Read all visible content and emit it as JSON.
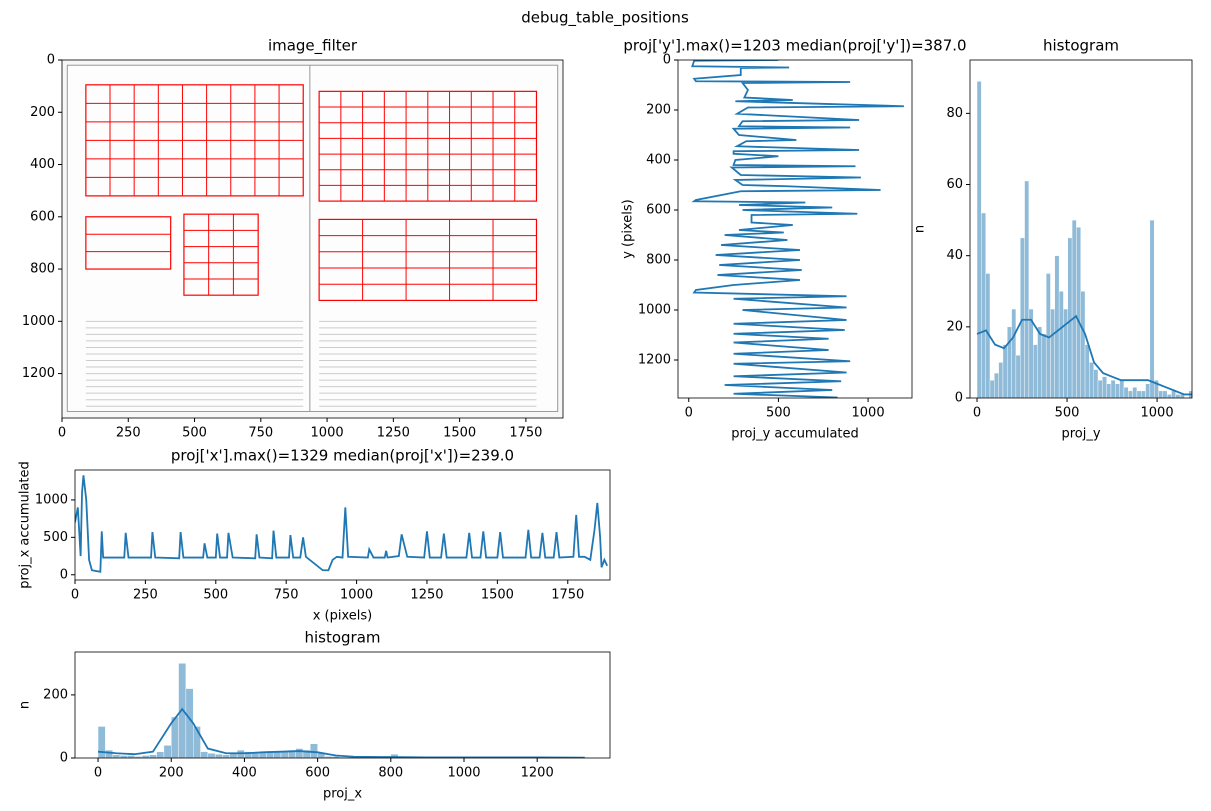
{
  "title": "debug_table_positions",
  "chart_data": [
    {
      "type": "image",
      "title": "image_filter",
      "xlim": [
        0,
        1890
      ],
      "ylim": [
        1370,
        0
      ],
      "xticks": [
        0,
        250,
        500,
        750,
        1000,
        1250,
        1500,
        1750
      ],
      "yticks": [
        0,
        200,
        400,
        600,
        800,
        1000,
        1200
      ]
    },
    {
      "type": "line",
      "orientation": "horizontal",
      "title": "proj['y'].max()=1203 median(proj['y'])=387.0",
      "xlabel": "proj_y accumulated",
      "ylabel": "y (pixels)",
      "color": "#1f77b4",
      "xlim": [
        -60,
        1245
      ],
      "ylim": [
        1352,
        0
      ],
      "xticks": [
        0,
        500,
        1000
      ],
      "yticks": [
        0,
        200,
        400,
        600,
        800,
        1000,
        1200
      ],
      "x": [
        0,
        3,
        25,
        30,
        32,
        60,
        75,
        85,
        88,
        92,
        120,
        150,
        160,
        165,
        185,
        190,
        215,
        240,
        245,
        265,
        270,
        275,
        300,
        320,
        325,
        345,
        360,
        365,
        375,
        385,
        400,
        420,
        425,
        430,
        460,
        470,
        480,
        500,
        505,
        520,
        525,
        560,
        565,
        570,
        580,
        590,
        600,
        615,
        620,
        650,
        660,
        680,
        690,
        700,
        720,
        740,
        760,
        780,
        800,
        820,
        840,
        860,
        880,
        900,
        920,
        930,
        945,
        955,
        990,
        1000,
        1040,
        1055,
        1080,
        1095,
        1115,
        1130,
        1160,
        1175,
        1205,
        1215,
        1250,
        1265,
        1285,
        1300,
        1320,
        1335,
        1350
      ],
      "values": [
        500,
        30,
        20,
        560,
        290,
        290,
        30,
        40,
        900,
        300,
        330,
        310,
        580,
        260,
        1200,
        330,
        270,
        950,
        300,
        280,
        900,
        250,
        280,
        600,
        320,
        270,
        950,
        250,
        250,
        500,
        260,
        250,
        930,
        240,
        290,
        960,
        260,
        300,
        550,
        1070,
        290,
        40,
        30,
        650,
        280,
        800,
        300,
        940,
        350,
        350,
        580,
        280,
        530,
        200,
        550,
        180,
        620,
        150,
        620,
        170,
        630,
        160,
        620,
        250,
        40,
        30,
        880,
        250,
        880,
        300,
        880,
        250,
        870,
        250,
        780,
        250,
        780,
        250,
        900,
        250,
        880,
        250,
        850,
        200,
        800,
        250,
        830
      ]
    },
    {
      "type": "histogram",
      "title": "histogram",
      "xlabel": "proj_y",
      "ylabel": "n",
      "color": "#1f77b4",
      "xlim": [
        -39,
        1194
      ],
      "ylim": [
        0,
        95
      ],
      "xticks": [
        0,
        500,
        1000
      ],
      "yticks": [
        0,
        20,
        40,
        60,
        80
      ],
      "bins": [
        0,
        24,
        48,
        72,
        96,
        120,
        144,
        168,
        192,
        216,
        240,
        264,
        288,
        312,
        336,
        360,
        384,
        408,
        432,
        456,
        480,
        504,
        528,
        552,
        576,
        600,
        624,
        648,
        672,
        696,
        720,
        744,
        768,
        792,
        816,
        840,
        864,
        888,
        912,
        936,
        960,
        984,
        1008,
        1032,
        1056,
        1080,
        1104,
        1128,
        1152,
        1176,
        1200,
        1224
      ],
      "counts": [
        89,
        52,
        35,
        5,
        7,
        10,
        15,
        20,
        25,
        12,
        45,
        61,
        25,
        15,
        20,
        18,
        35,
        25,
        40,
        30,
        25,
        45,
        50,
        48,
        30,
        15,
        10,
        8,
        5,
        6,
        4,
        5,
        4,
        5,
        3,
        2,
        3,
        2,
        2,
        4,
        50,
        5,
        2,
        2,
        1,
        2,
        1,
        1,
        0,
        2,
        1
      ],
      "kde": {
        "x": [
          0,
          50,
          100,
          150,
          200,
          250,
          300,
          350,
          400,
          450,
          500,
          550,
          600,
          650,
          700,
          750,
          800,
          850,
          900,
          950,
          1000,
          1050,
          1100,
          1150,
          1200
        ],
        "values": [
          18,
          19,
          15,
          14,
          17,
          22,
          22,
          18,
          17,
          19,
          21,
          23,
          18,
          10,
          7,
          6,
          5,
          5,
          5,
          5,
          4,
          3,
          2,
          1,
          1
        ]
      }
    },
    {
      "type": "line",
      "orientation": "vertical",
      "title": "proj['x'].max()=1329 median(proj['x'])=239.0",
      "xlabel": "x (pixels)",
      "ylabel": "proj_x accumulated",
      "color": "#1f77b4",
      "xlim": [
        0,
        1900
      ],
      "ylim": [
        -70,
        1400
      ],
      "xticks": [
        0,
        250,
        500,
        750,
        1000,
        1250,
        1500,
        1750
      ],
      "yticks": [
        0,
        500,
        1000
      ],
      "x": [
        0,
        10,
        20,
        25,
        30,
        40,
        50,
        60,
        90,
        95,
        100,
        175,
        180,
        190,
        270,
        275,
        285,
        370,
        375,
        385,
        455,
        460,
        470,
        500,
        505,
        515,
        540,
        545,
        560,
        640,
        645,
        655,
        700,
        705,
        715,
        760,
        765,
        775,
        800,
        810,
        820,
        880,
        900,
        915,
        930,
        950,
        960,
        970,
        1040,
        1045,
        1060,
        1100,
        1105,
        1110,
        1150,
        1160,
        1180,
        1240,
        1250,
        1260,
        1300,
        1310,
        1320,
        1390,
        1400,
        1410,
        1440,
        1450,
        1460,
        1500,
        1510,
        1520,
        1600,
        1610,
        1620,
        1650,
        1660,
        1670,
        1700,
        1710,
        1720,
        1770,
        1780,
        1790,
        1810,
        1830,
        1845,
        1855,
        1865,
        1870,
        1880,
        1890
      ],
      "values": [
        700,
        900,
        250,
        1100,
        1329,
        1000,
        200,
        60,
        40,
        580,
        230,
        230,
        560,
        230,
        230,
        570,
        230,
        220,
        570,
        230,
        230,
        420,
        230,
        230,
        550,
        230,
        230,
        560,
        230,
        220,
        540,
        230,
        220,
        590,
        230,
        230,
        530,
        230,
        230,
        500,
        240,
        60,
        60,
        200,
        240,
        230,
        900,
        240,
        230,
        340,
        230,
        230,
        320,
        230,
        250,
        540,
        240,
        230,
        580,
        230,
        230,
        550,
        230,
        230,
        560,
        230,
        230,
        580,
        230,
        230,
        570,
        230,
        230,
        600,
        230,
        230,
        560,
        230,
        230,
        570,
        230,
        240,
        800,
        240,
        240,
        200,
        600,
        960,
        500,
        100,
        200,
        120
      ]
    },
    {
      "type": "histogram",
      "title": "histogram",
      "xlabel": "proj_x",
      "ylabel": "n",
      "color": "#1f77b4",
      "xlim": [
        -63,
        1399
      ],
      "ylim": [
        0,
        336
      ],
      "xticks": [
        0,
        200,
        400,
        600,
        800,
        1000,
        1200
      ],
      "yticks": [
        0,
        200
      ],
      "bins": [
        0,
        20,
        40,
        60,
        80,
        100,
        120,
        140,
        160,
        180,
        200,
        220,
        240,
        260,
        280,
        300,
        320,
        340,
        360,
        380,
        400,
        420,
        440,
        460,
        480,
        500,
        520,
        540,
        560,
        580,
        600,
        620,
        640,
        660,
        680,
        700,
        720,
        740,
        760,
        780,
        800,
        820,
        840,
        860,
        880,
        900,
        920,
        940,
        960,
        980,
        1000,
        1020,
        1040,
        1060,
        1080,
        1100,
        1120,
        1140,
        1160,
        1180,
        1200,
        1220,
        1240,
        1260,
        1280,
        1300,
        1320,
        1340
      ],
      "counts": [
        100,
        25,
        10,
        8,
        8,
        5,
        8,
        10,
        20,
        40,
        130,
        300,
        220,
        100,
        20,
        15,
        12,
        10,
        15,
        25,
        20,
        18,
        20,
        22,
        20,
        20,
        25,
        30,
        25,
        45,
        15,
        5,
        5,
        3,
        3,
        3,
        2,
        2,
        2,
        4,
        12,
        2,
        2,
        1,
        1,
        1,
        2,
        1,
        1,
        1,
        1,
        1,
        1,
        1,
        1,
        1,
        1,
        1,
        1,
        1,
        1,
        1,
        1,
        1,
        1,
        1,
        2
      ],
      "kde": {
        "x": [
          0,
          50,
          100,
          150,
          200,
          230,
          260,
          300,
          350,
          400,
          450,
          500,
          550,
          600,
          650,
          700,
          800,
          900,
          1000,
          1100,
          1200,
          1330
        ],
        "values": [
          20,
          15,
          12,
          20,
          110,
          155,
          110,
          30,
          15,
          15,
          18,
          20,
          22,
          18,
          8,
          4,
          3,
          2,
          2,
          2,
          2,
          1
        ]
      }
    }
  ]
}
